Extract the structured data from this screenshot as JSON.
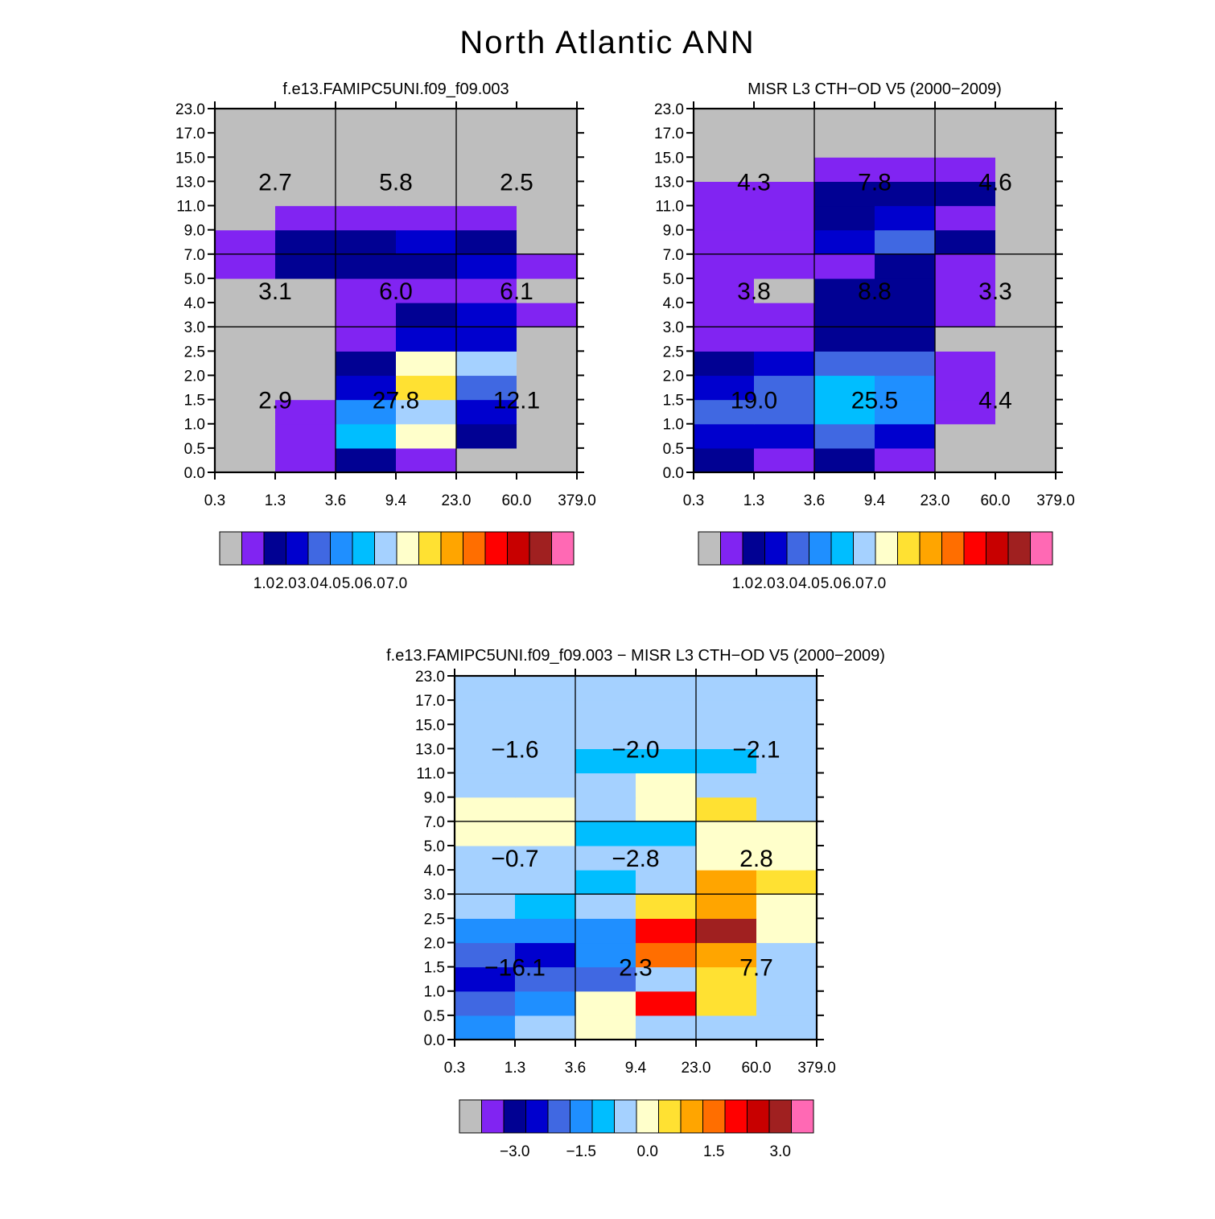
{
  "page_title": "North Atlantic ANN",
  "colors": {
    "palette": [
      "#BEBEBE",
      "#8124F2",
      "#010193",
      "#0000CE",
      "#4068E2",
      "#1F8FFF",
      "#00BEFF",
      "#A5D1FF",
      "#FFFFCB",
      "#FFE132",
      "#FFA500",
      "#FF6E00",
      "#FF0000",
      "#C80000",
      "#A02020",
      "#FF69B4"
    ],
    "missing": "#BEBEBE"
  },
  "chart_data": [
    {
      "type": "heatmap",
      "title": "f.e13.FAMIPC5UNI.f09_f09.003",
      "x_ticks": [
        "0.3",
        "1.3",
        "3.6",
        "9.4",
        "23.0",
        "60.0",
        "379.0"
      ],
      "y_ticks": [
        "0.0",
        "0.5",
        "1.0",
        "1.5",
        "2.0",
        "2.5",
        "3.0",
        "4.0",
        "5.0",
        "7.0",
        "9.0",
        "11.0",
        "13.0",
        "15.0",
        "17.0",
        "23.0"
      ],
      "cells": [
        [
          0,
          1,
          2,
          1,
          0,
          0
        ],
        [
          0,
          1,
          6,
          8,
          2,
          0
        ],
        [
          0,
          1,
          5,
          7,
          3,
          0
        ],
        [
          0,
          0,
          3,
          9,
          4,
          0
        ],
        [
          0,
          0,
          2,
          8,
          7,
          0
        ],
        [
          0,
          0,
          1,
          3,
          3,
          0
        ],
        [
          0,
          0,
          1,
          2,
          3,
          1
        ],
        [
          0,
          0,
          1,
          1,
          1,
          0
        ],
        [
          1,
          2,
          2,
          2,
          3,
          1
        ],
        [
          1,
          2,
          2,
          3,
          2,
          0
        ],
        [
          0,
          1,
          1,
          1,
          1,
          0
        ],
        [
          0,
          0,
          0,
          0,
          0,
          0
        ],
        [
          0,
          0,
          0,
          0,
          0,
          0
        ],
        [
          0,
          0,
          0,
          0,
          0,
          0
        ],
        [
          0,
          0,
          0,
          0,
          0,
          0
        ]
      ],
      "box_values": [
        [
          "2.9",
          "27.8",
          "12.1"
        ],
        [
          "3.1",
          "6.0",
          "6.1"
        ],
        [
          "2.7",
          "5.8",
          "2.5"
        ]
      ],
      "legend_labels": [
        "1.0",
        "2.0",
        "3.0",
        "4.0",
        "5.0",
        "6.0",
        "7.0"
      ]
    },
    {
      "type": "heatmap",
      "title": "MISR L3 CTH-OD V5 (2000-2009)",
      "x_ticks": [
        "0.3",
        "1.3",
        "3.6",
        "9.4",
        "23.0",
        "60.0",
        "379.0"
      ],
      "y_ticks": [
        "0.0",
        "0.5",
        "1.0",
        "1.5",
        "2.0",
        "2.5",
        "3.0",
        "4.0",
        "5.0",
        "7.0",
        "9.0",
        "11.0",
        "13.0",
        "15.0",
        "17.0",
        "23.0"
      ],
      "cells": [
        [
          2,
          1,
          2,
          1,
          0,
          0
        ],
        [
          3,
          3,
          4,
          3,
          0,
          0
        ],
        [
          4,
          4,
          6,
          5,
          1,
          0
        ],
        [
          3,
          4,
          6,
          5,
          1,
          0
        ],
        [
          2,
          3,
          4,
          4,
          1,
          0
        ],
        [
          1,
          1,
          2,
          2,
          0,
          0
        ],
        [
          1,
          1,
          2,
          2,
          1,
          0
        ],
        [
          1,
          0,
          2,
          2,
          1,
          0
        ],
        [
          1,
          1,
          1,
          2,
          1,
          0
        ],
        [
          1,
          1,
          3,
          4,
          2,
          0
        ],
        [
          1,
          1,
          2,
          3,
          1,
          0
        ],
        [
          1,
          1,
          2,
          2,
          2,
          0
        ],
        [
          0,
          0,
          1,
          1,
          1,
          0
        ],
        [
          0,
          0,
          0,
          0,
          0,
          0
        ],
        [
          0,
          0,
          0,
          0,
          0,
          0
        ]
      ],
      "box_values": [
        [
          "19.0",
          "25.5",
          "4.4"
        ],
        [
          "3.8",
          "8.8",
          "3.3"
        ],
        [
          "4.3",
          "7.8",
          "4.6"
        ]
      ],
      "legend_labels": [
        "1.0",
        "2.0",
        "3.0",
        "4.0",
        "5.0",
        "6.0",
        "7.0"
      ]
    },
    {
      "type": "heatmap",
      "title": "f.e13.FAMIPC5UNI.f09_f09.003 - MISR L3 CTH-OD V5 (2000-2009)",
      "x_ticks": [
        "0.3",
        "1.3",
        "3.6",
        "9.4",
        "23.0",
        "60.0",
        "379.0"
      ],
      "y_ticks": [
        "0.0",
        "0.5",
        "1.0",
        "1.5",
        "2.0",
        "2.5",
        "3.0",
        "4.0",
        "5.0",
        "7.0",
        "9.0",
        "11.0",
        "13.0",
        "15.0",
        "17.0",
        "23.0"
      ],
      "cells": [
        [
          5,
          7,
          8,
          7,
          7,
          7
        ],
        [
          4,
          5,
          8,
          12,
          9,
          7
        ],
        [
          3,
          4,
          4,
          7,
          9,
          7
        ],
        [
          4,
          3,
          5,
          11,
          10,
          7
        ],
        [
          5,
          5,
          5,
          12,
          14,
          8
        ],
        [
          7,
          6,
          7,
          9,
          10,
          8
        ],
        [
          7,
          7,
          6,
          7,
          10,
          9
        ],
        [
          7,
          7,
          7,
          7,
          8,
          8
        ],
        [
          8,
          8,
          6,
          6,
          8,
          8
        ],
        [
          8,
          8,
          7,
          8,
          9,
          7
        ],
        [
          7,
          7,
          7,
          8,
          7,
          7
        ],
        [
          7,
          7,
          6,
          6,
          6,
          7
        ],
        [
          7,
          7,
          7,
          7,
          7,
          7
        ],
        [
          7,
          7,
          7,
          7,
          7,
          7
        ],
        [
          7,
          7,
          7,
          7,
          7,
          7
        ]
      ],
      "box_values": [
        [
          "-16.1",
          "2.3",
          "7.7"
        ],
        [
          "-0.7",
          "-2.8",
          "2.8"
        ],
        [
          "-1.6",
          "-2.0",
          "-2.1"
        ]
      ],
      "legend_labels": [
        "-3.0",
        "-1.5",
        "0.0",
        "1.5",
        "3.0"
      ]
    }
  ]
}
